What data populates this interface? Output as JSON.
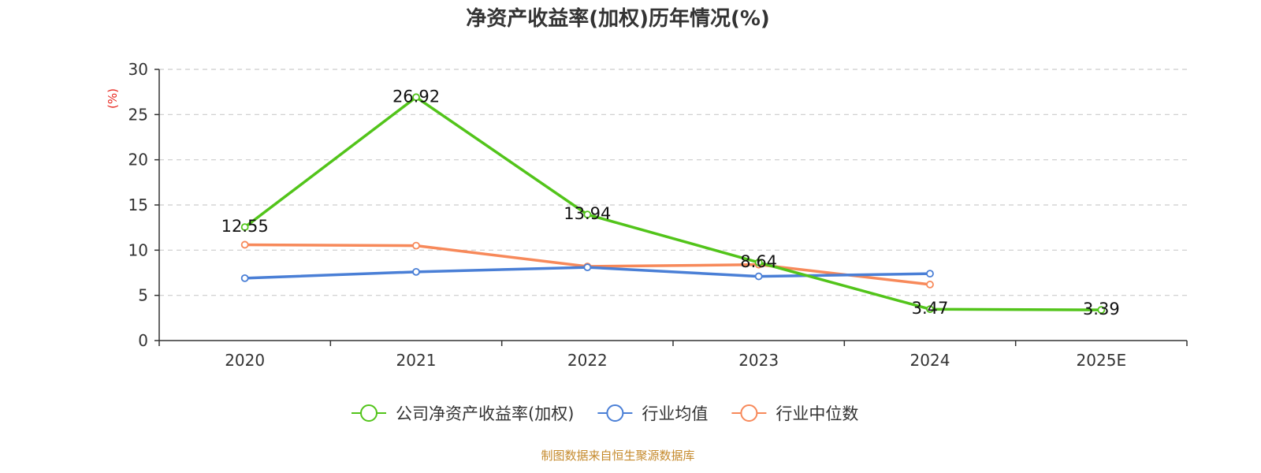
{
  "chart_data": {
    "type": "line",
    "title": "净资产收益率(加权)历年情况(%)",
    "ylabel": "(%)",
    "xlabel": "",
    "categories": [
      "2020",
      "2021",
      "2022",
      "2023",
      "2024",
      "2025E"
    ],
    "ylim": [
      0,
      30
    ],
    "yticks": [
      0,
      5,
      10,
      15,
      20,
      25,
      30
    ],
    "grid": true,
    "legend_position": "bottom",
    "series": [
      {
        "name": "公司净资产收益率(加权)",
        "color": "#52c41a",
        "values": [
          12.55,
          26.92,
          13.94,
          8.64,
          3.47,
          3.39
        ],
        "labels": [
          "12.55",
          "26.92",
          "13.94",
          "8.64",
          "3.47",
          "3.39"
        ]
      },
      {
        "name": "行业均值",
        "color": "#4a7fd6",
        "values": [
          6.9,
          7.6,
          8.1,
          7.1,
          7.4,
          null
        ]
      },
      {
        "name": "行业中位数",
        "color": "#f7895a",
        "values": [
          10.6,
          10.5,
          8.2,
          8.4,
          6.2,
          null
        ]
      }
    ],
    "source": "制图数据来自恒生聚源数据库"
  },
  "colors": {
    "axis": "#333333",
    "grid": "#cccccc",
    "ylabel": "#e8251d",
    "source": "#c58a2c"
  }
}
